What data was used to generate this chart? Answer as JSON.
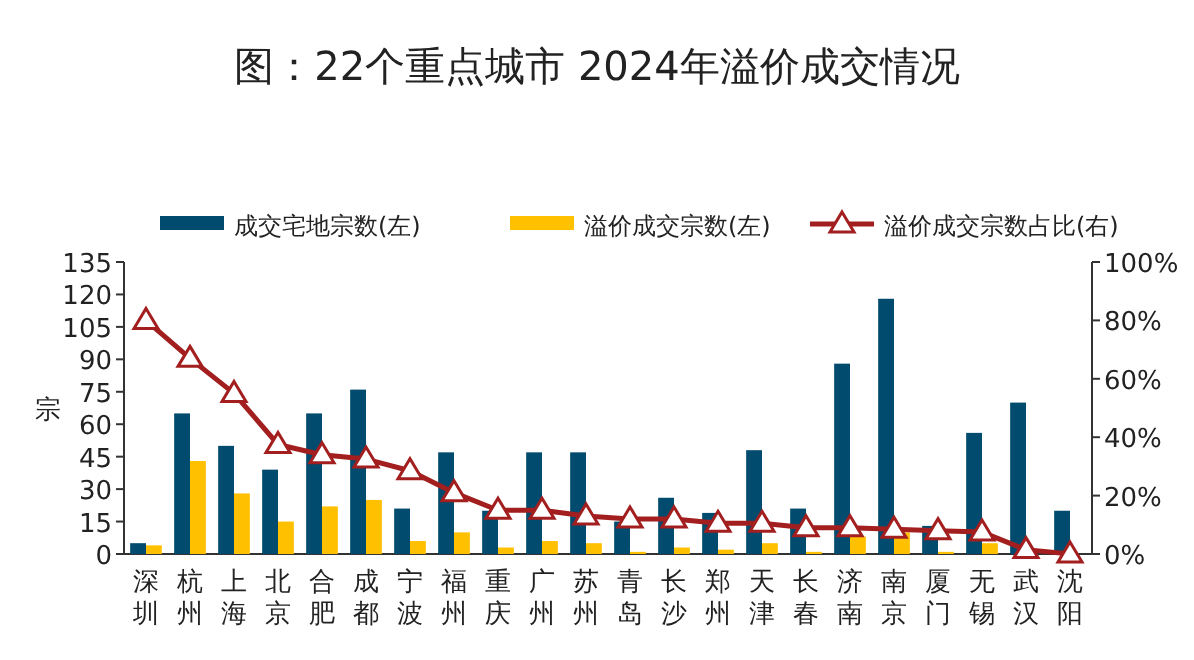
{
  "chart_data": {
    "type": "bar",
    "title": "图：22个重点城市 2024年溢价成交情况",
    "ylabel": "宗",
    "categories": [
      "深圳",
      "杭州",
      "上海",
      "北京",
      "合肥",
      "成都",
      "宁波",
      "福州",
      "重庆",
      "广州",
      "苏州",
      "青岛",
      "长沙",
      "郑州",
      "天津",
      "长春",
      "济南",
      "南京",
      "厦门",
      "无锡",
      "武汉",
      "沈阳"
    ],
    "series": [
      {
        "name": "成交宅地宗数(左)",
        "color": "#004b6e",
        "values": [
          5,
          65,
          50,
          39,
          65,
          76,
          21,
          47,
          20,
          47,
          47,
          15,
          26,
          19,
          48,
          21,
          88,
          118,
          13,
          56,
          70,
          20
        ]
      },
      {
        "name": "溢价成交宗数(左)",
        "color": "#ffc000",
        "values": [
          4,
          43,
          28,
          15,
          22,
          25,
          6,
          10,
          3,
          6,
          5,
          1,
          3,
          2,
          5,
          1,
          8,
          10,
          1,
          5,
          null,
          0
        ]
      },
      {
        "name": "溢价成交宗数占比(右)",
        "type": "line",
        "axis": "y2",
        "color": "#a31f1f",
        "marker": "triangle",
        "values": [
          80,
          67,
          55,
          37.5,
          34,
          32.5,
          28.5,
          21,
          15,
          15,
          13,
          12,
          12,
          10.5,
          10.5,
          9,
          9,
          8.5,
          8,
          7.5,
          1.5,
          0
        ]
      }
    ],
    "ylim": [
      0,
      135
    ],
    "yticks": [
      0,
      15,
      30,
      45,
      60,
      75,
      90,
      105,
      120,
      135
    ],
    "y2lim": [
      0,
      100
    ],
    "y2ticks": [
      {
        "value": 0,
        "label": "0%"
      },
      {
        "value": 20,
        "label": "20%"
      },
      {
        "value": 40,
        "label": "40%"
      },
      {
        "value": 60,
        "label": "60%"
      },
      {
        "value": 80,
        "label": "80%"
      },
      {
        "value": 100,
        "label": "100%"
      }
    ],
    "legend": "top",
    "grid": false
  }
}
